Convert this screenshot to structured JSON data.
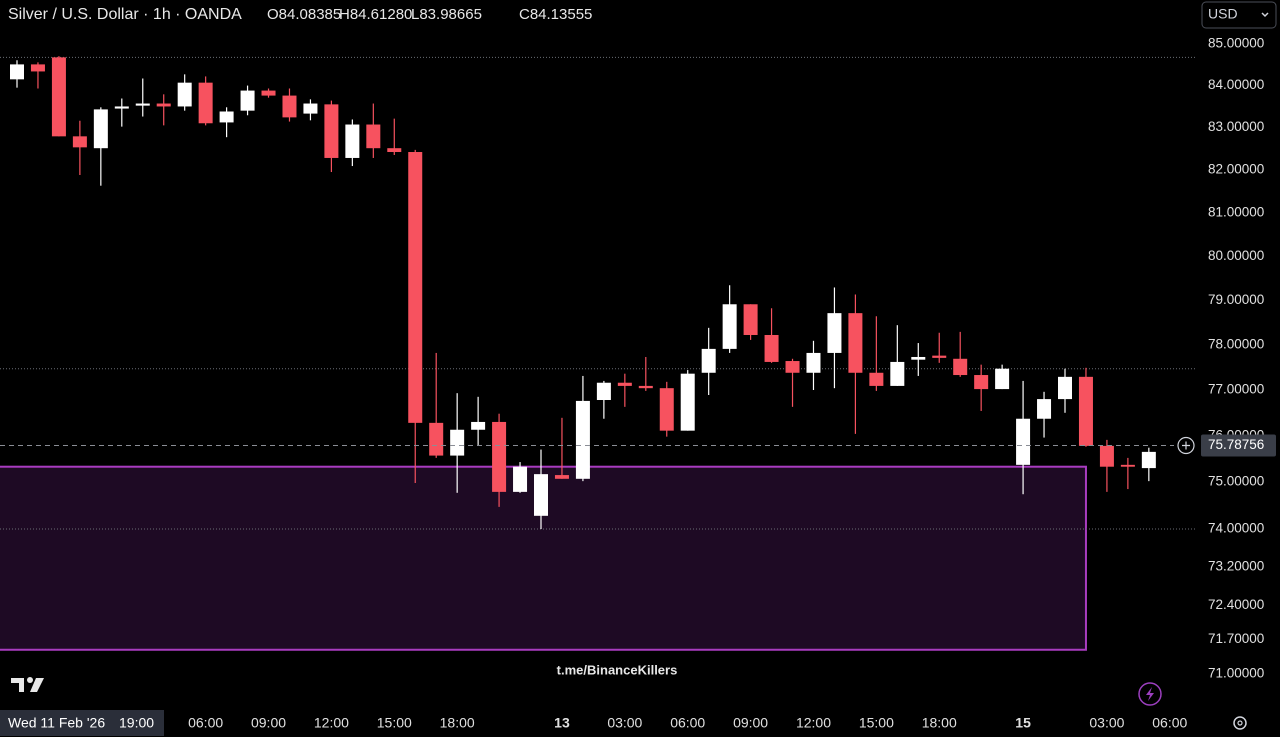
{
  "chart_data": {
    "type": "candlestick",
    "title": "Silver / U.S. Dollar · 1h · OANDA",
    "ohlc_labels": [
      "O84.08385",
      "H84.61280",
      "L83.98665",
      "C84.13555"
    ],
    "currency": "USD",
    "watermark": "t.me/BinanceKillers",
    "cursor_date": "Wed 11 Feb '26",
    "cursor_time": "19:00",
    "categories": [
      null,
      null,
      null,
      null,
      null,
      null,
      null,
      null,
      null,
      "06:00",
      null,
      null,
      "09:00",
      null,
      null,
      "12:00",
      null,
      null,
      "15:00",
      null,
      null,
      "18:00",
      null,
      null,
      null,
      null,
      "13",
      null,
      null,
      "03:00",
      null,
      null,
      "06:00",
      null,
      null,
      "09:00",
      null,
      null,
      "12:00",
      null,
      null,
      "15:00",
      null,
      null,
      "18:00",
      null,
      null,
      null,
      "15",
      null,
      null,
      null,
      "03:00",
      null,
      null,
      "06:00"
    ],
    "open": [
      84.15,
      84.51,
      84.68,
      82.79,
      82.51,
      83.45,
      83.52,
      83.57,
      83.5,
      84.07,
      83.12,
      83.4,
      83.88,
      83.76,
      83.33,
      83.55,
      82.28,
      83.07,
      82.51,
      82.42,
      76.28,
      75.57,
      76.13,
      76.3,
      74.79,
      74.28,
      75.15,
      75.07,
      76.78,
      77.16,
      77.09,
      77.04,
      76.11,
      77.38,
      77.91,
      78.91,
      78.22,
      77.64,
      77.38,
      77.82,
      78.71,
      77.38,
      77.09,
      77.67,
      77.76,
      77.69,
      77.33,
      77.02,
      75.37,
      76.37,
      76.8,
      77.29,
      75.78,
      75.37,
      75.3,
      null
    ],
    "high": [
      84.61,
      84.56,
      84.71,
      83.16,
      83.48,
      83.69,
      84.17,
      83.79,
      84.27,
      84.22,
      83.48,
      84.0,
      83.93,
      83.93,
      83.67,
      83.64,
      83.19,
      83.57,
      83.21,
      82.47,
      77.82,
      76.93,
      76.85,
      76.48,
      75.43,
      75.7,
      76.39,
      77.31,
      77.2,
      77.36,
      77.73,
      77.18,
      77.44,
      78.38,
      79.34,
      78.91,
      78.82,
      77.69,
      78.09,
      79.29,
      79.13,
      78.64,
      78.44,
      78.04,
      78.27,
      78.29,
      77.56,
      77.56,
      77.2,
      76.96,
      77.47,
      77.49,
      75.91,
      75.52,
      75.74,
      null
    ],
    "low": [
      83.95,
      83.93,
      82.79,
      81.88,
      81.63,
      83.02,
      83.26,
      83.05,
      83.4,
      83.05,
      82.77,
      83.29,
      83.71,
      83.14,
      83.17,
      81.95,
      82.09,
      82.28,
      82.35,
      74.98,
      75.52,
      74.77,
      75.8,
      74.47,
      74.77,
      74.0,
      75.07,
      75.02,
      76.37,
      76.63,
      76.98,
      75.98,
      76.11,
      76.89,
      77.82,
      78.11,
      77.6,
      76.63,
      77.0,
      77.04,
      76.04,
      76.98,
      77.09,
      77.31,
      77.6,
      77.29,
      76.54,
      77.02,
      74.74,
      75.96,
      76.5,
      75.76,
      74.79,
      74.85,
      75.02,
      null
    ],
    "close": [
      84.51,
      84.34,
      82.79,
      82.53,
      83.43,
      83.5,
      83.57,
      83.5,
      84.07,
      83.1,
      83.38,
      83.88,
      83.76,
      83.24,
      83.57,
      82.28,
      83.07,
      82.51,
      82.42,
      76.28,
      75.57,
      76.13,
      76.3,
      74.79,
      75.33,
      75.17,
      75.07,
      76.76,
      77.16,
      77.09,
      77.04,
      76.11,
      77.36,
      77.91,
      78.91,
      78.22,
      77.62,
      77.38,
      77.82,
      78.71,
      77.38,
      77.09,
      77.62,
      77.73,
      77.71,
      77.33,
      77.02,
      77.47,
      76.37,
      76.8,
      77.29,
      75.78,
      75.33,
      75.33,
      75.65,
      null
    ],
    "up_color": "#ffffff",
    "down_color": "#f7525f",
    "log_scale": true,
    "ylim": [
      70.37,
      86.08
    ],
    "yticks": [
      {
        "value": 85,
        "label": "85.00000"
      },
      {
        "value": 84,
        "label": "84.00000"
      },
      {
        "value": 83,
        "label": "83.00000"
      },
      {
        "value": 82,
        "label": "82.00000"
      },
      {
        "value": 81,
        "label": "81.00000"
      },
      {
        "value": 80,
        "label": "80.00000"
      },
      {
        "value": 79,
        "label": "79.00000"
      },
      {
        "value": 78,
        "label": "78.00000"
      },
      {
        "value": 77,
        "label": "77.00000"
      },
      {
        "value": 76,
        "label": "76.00000"
      },
      {
        "value": 75,
        "label": "75.00000"
      },
      {
        "value": 74,
        "label": "74.00000"
      },
      {
        "value": 73.2,
        "label": "73.20000"
      },
      {
        "value": 72.4,
        "label": "72.40000"
      },
      {
        "value": 71.7,
        "label": "71.70000"
      },
      {
        "value": 71,
        "label": "71.00000"
      }
    ],
    "current_price": {
      "value": 75.78756,
      "label": "75.78756"
    },
    "levels": [
      84.68,
      77.47,
      74.0
    ],
    "zone": {
      "high": 75.33,
      "low": 71.49,
      "end": 51,
      "color": "#a93cc0",
      "fill": "#1e0a24"
    }
  }
}
